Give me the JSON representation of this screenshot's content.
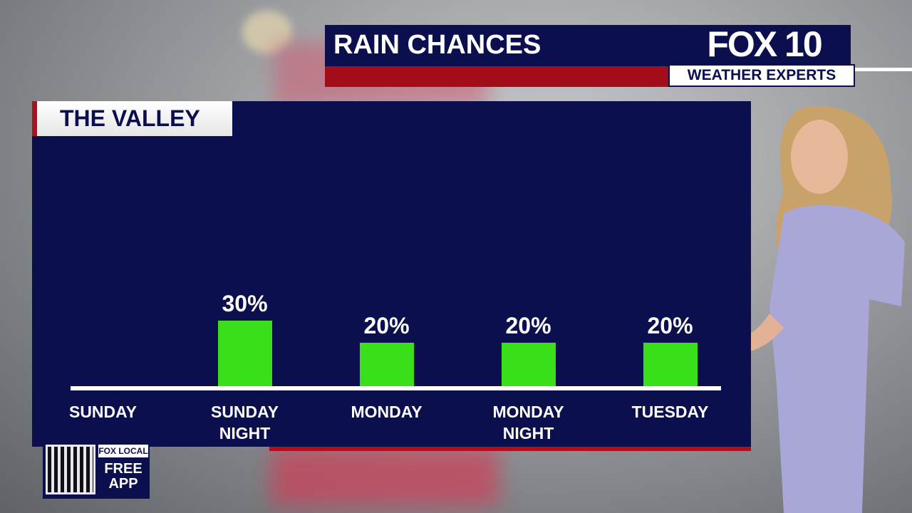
{
  "header": {
    "logo": "FOX 10",
    "logo_tagline": "WEATHER EXPERTS"
  },
  "chart_data": {
    "type": "bar",
    "title": "RAIN CHANCES",
    "subtitle": "THE VALLEY",
    "categories": [
      "SUNDAY",
      "SUNDAY NIGHT",
      "MONDAY",
      "MONDAY NIGHT",
      "TUESDAY"
    ],
    "values": [
      null,
      30,
      20,
      20,
      20
    ],
    "value_labels": [
      null,
      "30%",
      "20%",
      "20%",
      "20%"
    ],
    "color": "#39e01a"
  },
  "app_promo": {
    "brand": "FOX LOCAL",
    "text": "FREE APP"
  }
}
